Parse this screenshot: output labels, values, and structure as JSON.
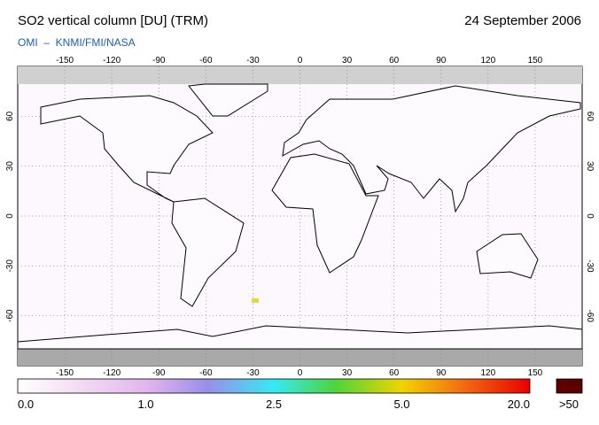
{
  "header": {
    "title": "SO2 vertical column [DU] (TRM)",
    "date": "24 September 2006",
    "source": "OMI  –  KNMI/FMI/NASA"
  },
  "map": {
    "lonlim": [
      -180,
      180
    ],
    "latlim": [
      -90,
      90
    ],
    "lon_ticks": [
      -150,
      -120,
      -90,
      -60,
      -30,
      0,
      30,
      60,
      90,
      120,
      150
    ],
    "lat_ticks": [
      60,
      30,
      0,
      -30,
      -60
    ]
  },
  "colorbar": {
    "labels": [
      "0.0",
      "1.0",
      "2.5",
      "5.0",
      "20.0"
    ],
    "overflow": ">50"
  }
}
